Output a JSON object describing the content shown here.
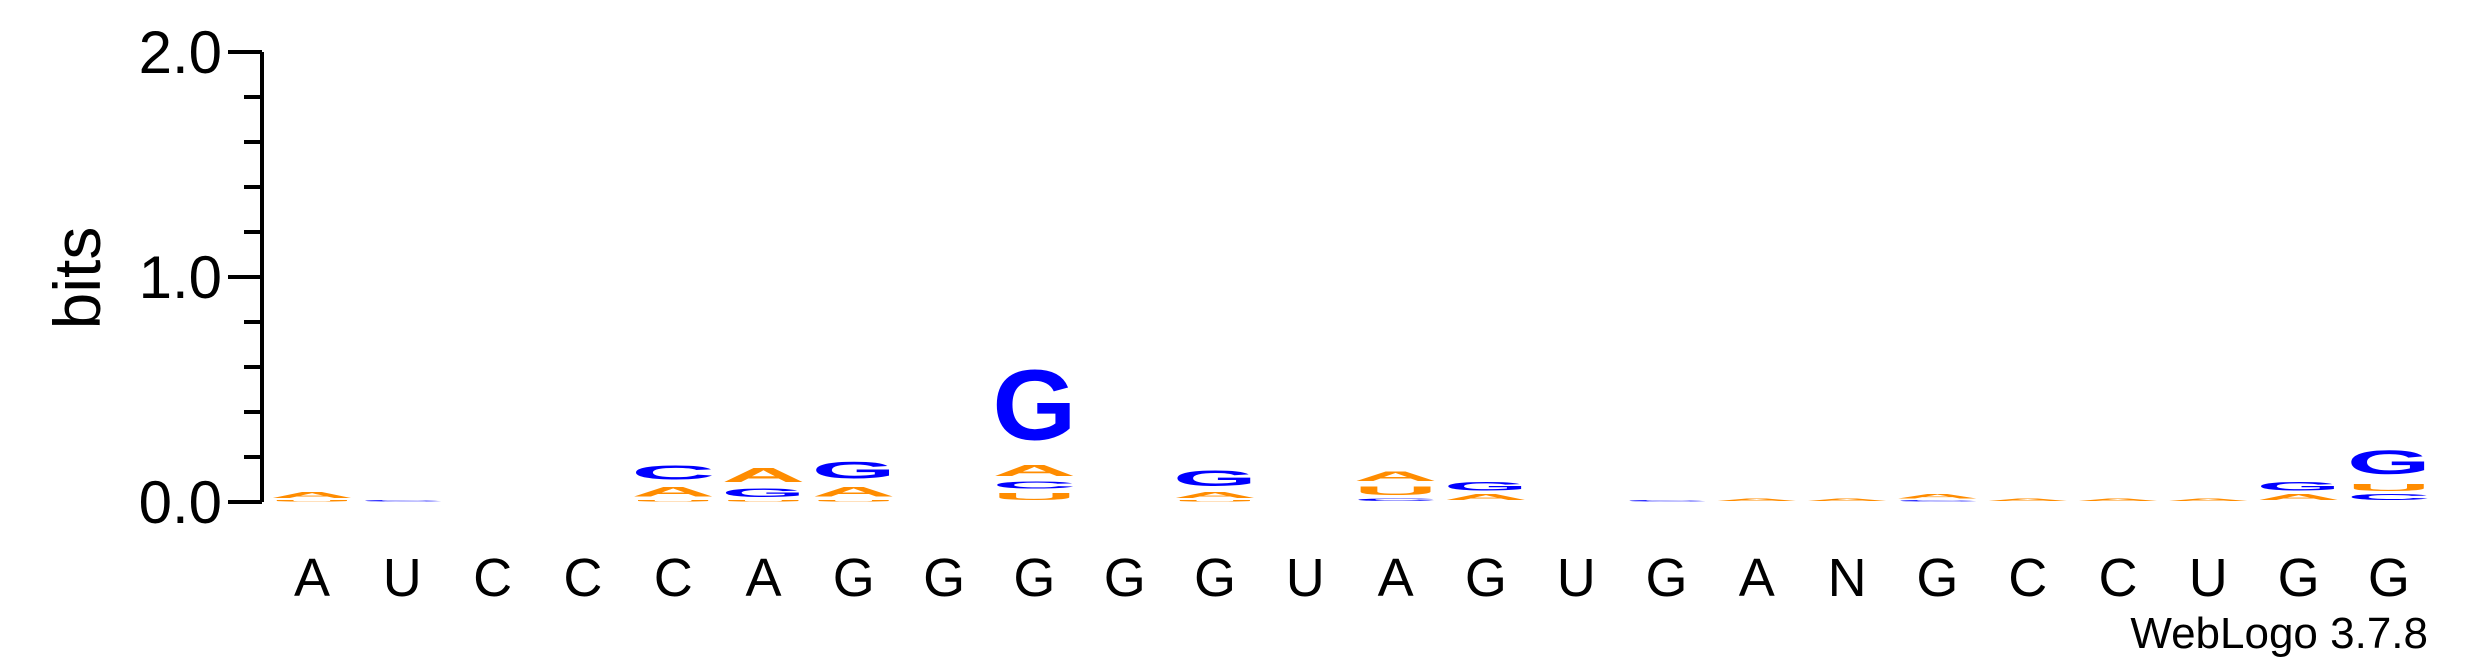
{
  "chart_data": {
    "type": "sequence-logo",
    "ylabel": "bits",
    "ylim": [
      0,
      2.0
    ],
    "y_ticks": [
      {
        "value": 0.0,
        "label": "0.0"
      },
      {
        "value": 1.0,
        "label": "1.0"
      },
      {
        "value": 2.0,
        "label": "2.0"
      }
    ],
    "credit": "WebLogo 3.7.8",
    "colors": {
      "A": "#ff8c00",
      "U": "#ff8c00",
      "C": "#0000ff",
      "G": "#0000ff",
      "N": "#0000ff"
    },
    "positions": [
      {
        "label": "A",
        "stack": [
          {
            "letter": "U",
            "bits": 0.01
          },
          {
            "letter": "A",
            "bits": 0.04
          }
        ]
      },
      {
        "label": "U",
        "stack": [
          {
            "letter": "C",
            "bits": 0.01
          }
        ]
      },
      {
        "label": "C",
        "stack": []
      },
      {
        "label": "C",
        "stack": []
      },
      {
        "label": "C",
        "stack": [
          {
            "letter": "U",
            "bits": 0.01
          },
          {
            "letter": "A",
            "bits": 0.07
          },
          {
            "letter": "C",
            "bits": 0.1
          }
        ]
      },
      {
        "label": "A",
        "stack": [
          {
            "letter": "U",
            "bits": 0.01
          },
          {
            "letter": "G",
            "bits": 0.06
          },
          {
            "letter": "A",
            "bits": 0.1
          }
        ]
      },
      {
        "label": "G",
        "stack": [
          {
            "letter": "U",
            "bits": 0.01
          },
          {
            "letter": "A",
            "bits": 0.07
          },
          {
            "letter": "G",
            "bits": 0.12
          }
        ]
      },
      {
        "label": "G",
        "stack": []
      },
      {
        "label": "G",
        "stack": [
          {
            "letter": "U",
            "bits": 0.05
          },
          {
            "letter": "C",
            "bits": 0.05
          },
          {
            "letter": "A",
            "bits": 0.08
          },
          {
            "letter": "G",
            "bits": 0.5
          }
        ]
      },
      {
        "label": "G",
        "stack": []
      },
      {
        "label": "G",
        "stack": [
          {
            "letter": "U",
            "bits": 0.01
          },
          {
            "letter": "A",
            "bits": 0.04
          },
          {
            "letter": "G",
            "bits": 0.11
          }
        ]
      },
      {
        "label": "U",
        "stack": []
      },
      {
        "label": "A",
        "stack": [
          {
            "letter": "C",
            "bits": 0.02
          },
          {
            "letter": "U",
            "bits": 0.06
          },
          {
            "letter": "A",
            "bits": 0.07
          }
        ]
      },
      {
        "label": "G",
        "stack": [
          {
            "letter": "A",
            "bits": 0.04
          },
          {
            "letter": "G",
            "bits": 0.06
          }
        ]
      },
      {
        "label": "U",
        "stack": []
      },
      {
        "label": "G",
        "stack": [
          {
            "letter": "C",
            "bits": 0.01
          }
        ]
      },
      {
        "label": "A",
        "stack": [
          {
            "letter": "A",
            "bits": 0.02
          }
        ]
      },
      {
        "label": "N",
        "stack": [
          {
            "letter": "A",
            "bits": 0.02
          }
        ]
      },
      {
        "label": "G",
        "stack": [
          {
            "letter": "C",
            "bits": 0.01
          },
          {
            "letter": "A",
            "bits": 0.03
          }
        ]
      },
      {
        "label": "C",
        "stack": [
          {
            "letter": "A",
            "bits": 0.02
          }
        ]
      },
      {
        "label": "C",
        "stack": [
          {
            "letter": "A",
            "bits": 0.02
          }
        ]
      },
      {
        "label": "U",
        "stack": [
          {
            "letter": "A",
            "bits": 0.02
          }
        ]
      },
      {
        "label": "G",
        "stack": [
          {
            "letter": "A",
            "bits": 0.04
          },
          {
            "letter": "G",
            "bits": 0.06
          }
        ]
      },
      {
        "label": "G",
        "stack": [
          {
            "letter": "C",
            "bits": 0.04
          },
          {
            "letter": "U",
            "bits": 0.05
          },
          {
            "letter": "G",
            "bits": 0.17
          }
        ]
      }
    ]
  }
}
